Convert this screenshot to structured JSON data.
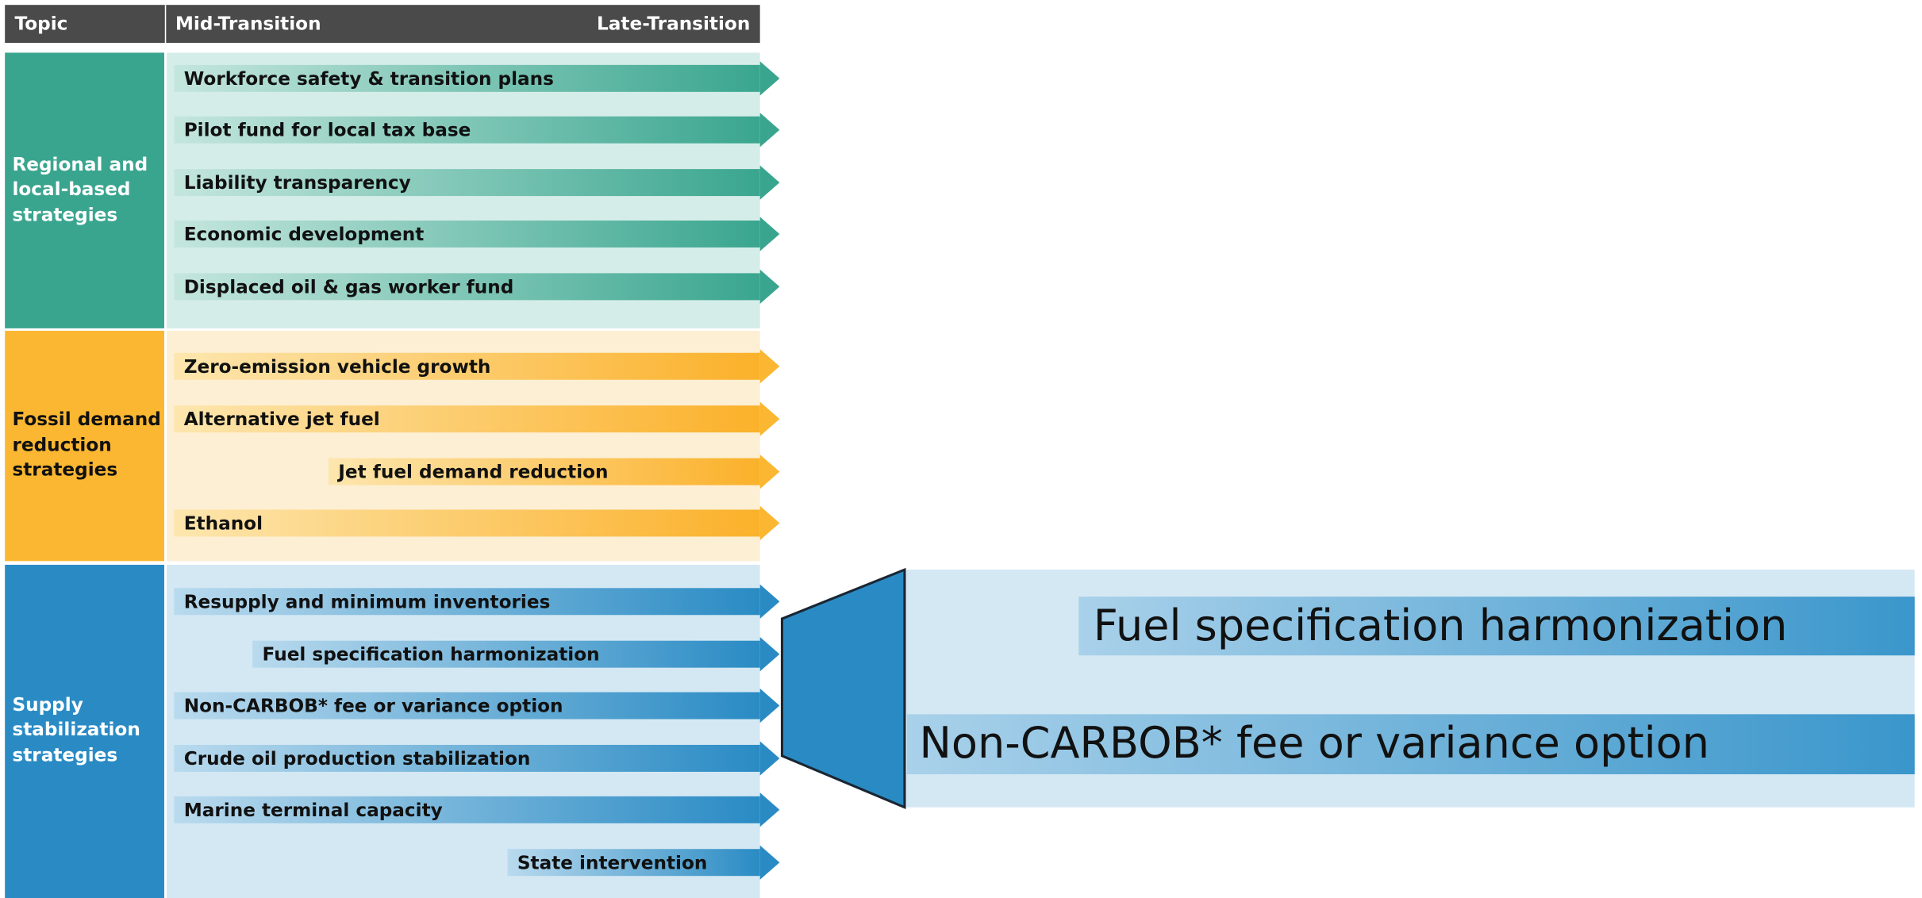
{
  "header": {
    "topic": "Topic",
    "mid": "Mid-Transition",
    "late": "Late-Transition"
  },
  "sections": [
    {
      "topic": [
        "Regional and",
        "local-based",
        "strategies"
      ],
      "items": [
        "Workforce safety & transition plans",
        "Pilot fund for local tax base",
        "Liability transparency",
        "Economic development",
        "Displaced oil & gas worker fund"
      ]
    },
    {
      "topic": [
        "Fossil demand",
        "reduction",
        "strategies"
      ],
      "items": [
        "Zero-emission vehicle growth",
        "Alternative jet fuel",
        "Jet fuel demand reduction",
        "Ethanol"
      ]
    },
    {
      "topic": [
        "Supply",
        "stabilization",
        "strategies"
      ],
      "items": [
        "Resupply and minimum inventories",
        "Fuel specification harmonization",
        "Non-CARBOB* fee or variance option",
        "Crude oil production stabilization",
        "Marine terminal capacity",
        "State intervention"
      ]
    }
  ]
}
